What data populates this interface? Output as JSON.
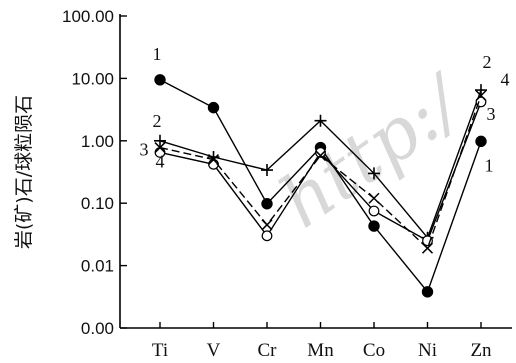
{
  "chart_data": {
    "type": "line",
    "ylabel": "岩(矿)石/球粒陨石",
    "yscale": "log",
    "ylim": [
      0.001,
      100
    ],
    "yticks": [
      {
        "value": 100,
        "label": "100.00"
      },
      {
        "value": 10,
        "label": "10.00"
      },
      {
        "value": 1,
        "label": "1.00"
      },
      {
        "value": 0.1,
        "label": "0.10"
      },
      {
        "value": 0.01,
        "label": "0.01"
      },
      {
        "value": 0.001,
        "label": "0.00"
      }
    ],
    "categories": [
      "Ti",
      "V",
      "Cr",
      "Mn",
      "Co",
      "Ni",
      "Zn"
    ],
    "grid": false,
    "watermark": "http:/",
    "series": [
      {
        "name": "1",
        "marker": "filled-circle",
        "dash": "solid",
        "values": [
          9.5,
          3.4,
          0.098,
          0.78,
          0.043,
          0.0038,
          0.98
        ],
        "labels": [
          {
            "category": "Ti",
            "text": "1"
          },
          {
            "category": "Zn",
            "text": "1"
          }
        ]
      },
      {
        "name": "2",
        "marker": "plus",
        "dash": "solid",
        "values": [
          1.0,
          0.55,
          0.34,
          2.1,
          0.3,
          0.028,
          6.5
        ],
        "labels": [
          {
            "category": "Ti",
            "text": "2"
          },
          {
            "category": "Zn",
            "text": "2"
          }
        ]
      },
      {
        "name": "3",
        "marker": "open-circle",
        "dash": "solid",
        "values": [
          0.65,
          0.42,
          0.03,
          0.65,
          0.075,
          0.025,
          4.2
        ],
        "labels": [
          {
            "category": "Ti",
            "text": "3"
          },
          {
            "category": "Zn",
            "text": "3"
          }
        ]
      },
      {
        "name": "4",
        "marker": "x",
        "dash": "dashed",
        "values": [
          0.78,
          0.5,
          0.045,
          0.58,
          0.12,
          0.019,
          5.3
        ],
        "labels": [
          {
            "category": "Ti",
            "text": "4"
          },
          {
            "category": "Zn",
            "text": "4"
          }
        ]
      }
    ]
  }
}
